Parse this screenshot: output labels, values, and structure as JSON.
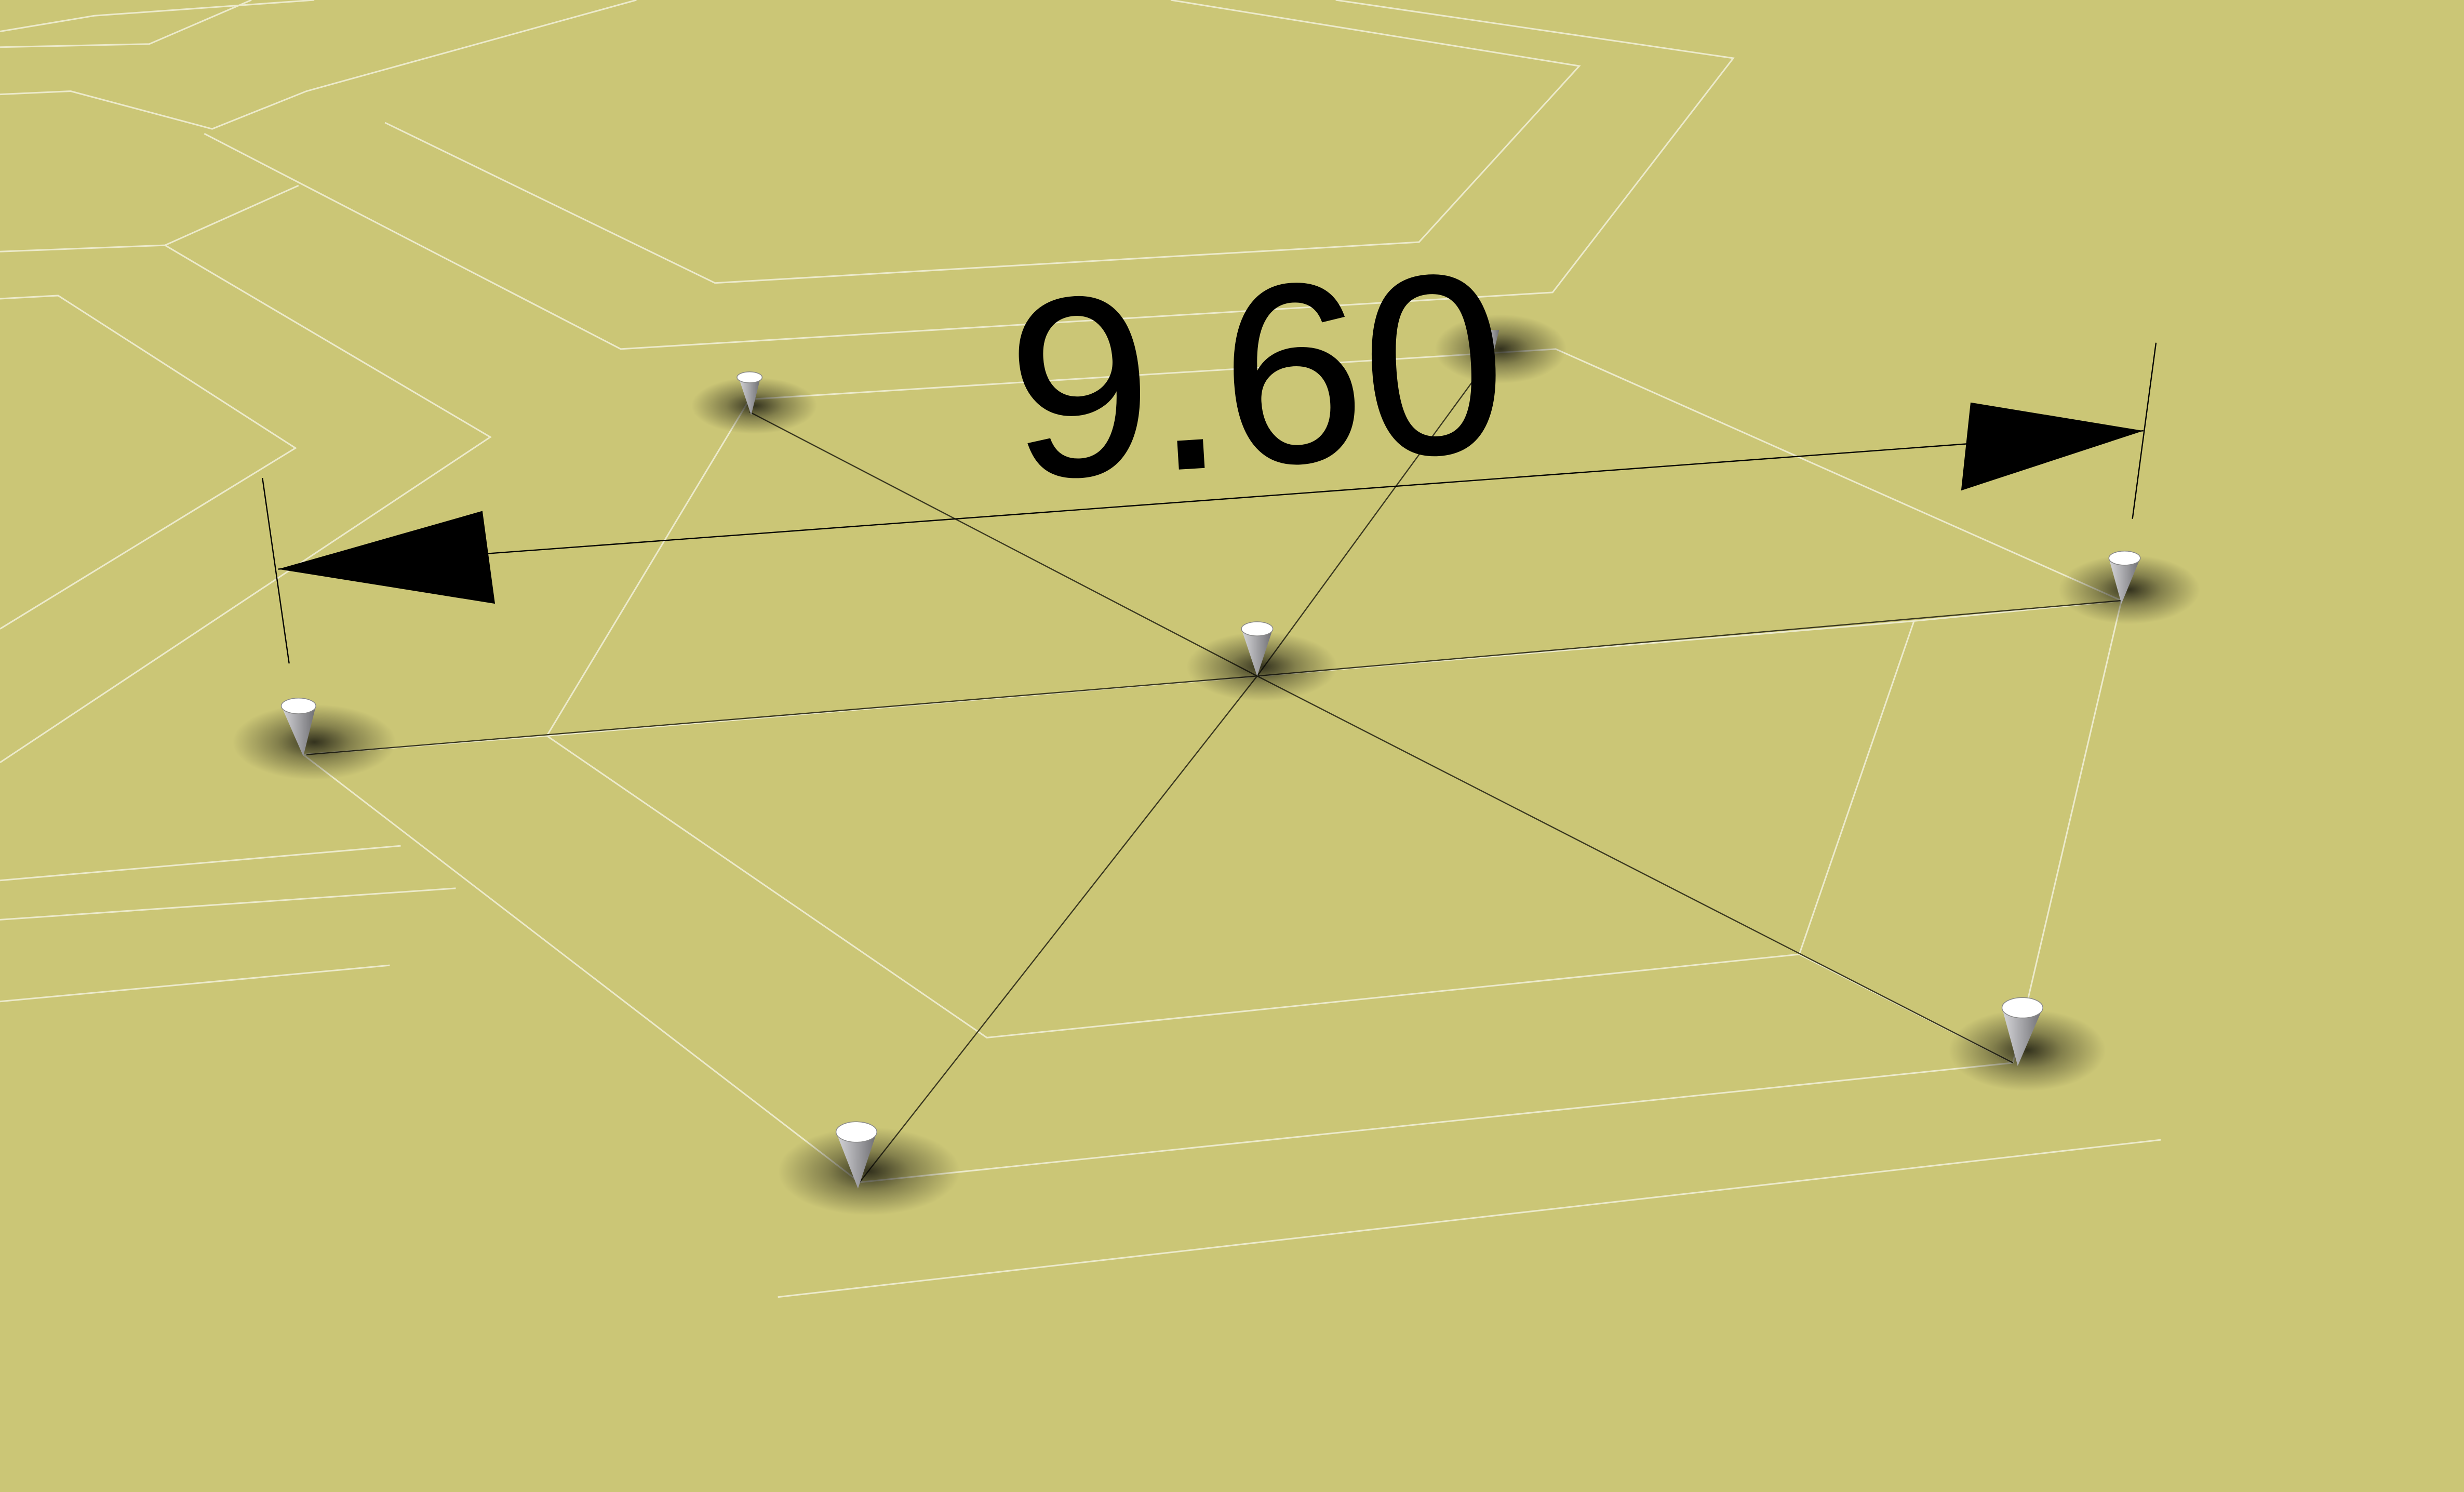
{
  "dimension": {
    "value_label": "9.60",
    "value": 9.6
  },
  "colors": {
    "ground": "#cbc676",
    "grid_lines": "#eceacb",
    "construction_lines": "#3a3820",
    "dimension": "#000000",
    "peg_body": "#a9a9ac",
    "peg_top": "#ffffff"
  },
  "scene": {
    "peg_count": 7,
    "dimension_arrows": 2,
    "peg_icon": "cone-peg-icon"
  }
}
